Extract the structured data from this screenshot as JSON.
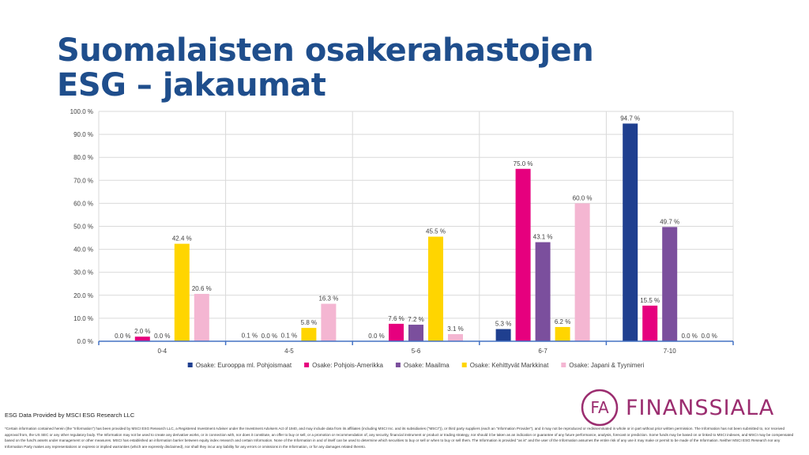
{
  "slide": {
    "title": "Suomalaisten osakerahastojen ESG – jakaumat",
    "source": "ESG Data Provided by MSCI ESG Research LLC",
    "disclaimer": "*Certain information contained herein (the \"Information\") has been provided by MSCI ESG Research LLC, a Registered Investment Adviser under the Investment Advisers Act of 1940, and may include data from its affiliates (including MSCI Inc. and its subsidiaries (\"MSCI\")), or third party suppliers (each an \"Information Provider\"), and it may not be reproduced or redisseminated in whole or in part without prior written permission. The Information has not been submitted to, nor received approval from, the US SEC or any other regulatory body. The Information may not be used to create any derivative works, or in connection with, nor does it constitute, an offer to buy or sell, or a promotion or recommendation of, any security, financial instrument or product or trading strategy, nor should it be taken as an indication or guarantee of any future performance, analysis, forecast or prediction. Some funds may be based on or linked to MSCI indexes, and MSCI may be compensated based on the fund's assets under management or other measures. MSCI has established an information barrier between equity index research and certain Information. None of the Information in and of itself can be used to determine which securities to buy or sell or when to buy or sell them. The Information is provided \"as is\" and the user of the Information assumes the entire risk of any use it may make or permit to be made of the Information. Neither MSCI ESG Research nor any Information Party makes any representations or express or implied warranties (which are expressly disclaimed), nor shall they incur any liability for any errors or omissions in the Information, or for any damages related thereto.",
    "logo_text": "FINANSSIALA",
    "logo_monogram": "FA"
  },
  "colors": {
    "title": "#1f4e8c",
    "brand": "#9b2d6f",
    "grid": "#d9d9d9",
    "axis": "#4472c4"
  },
  "chart_data": {
    "type": "bar",
    "title": "",
    "xlabel": "",
    "ylabel": "",
    "ylim": [
      0,
      100
    ],
    "ytick_step": 10,
    "ytick_labels": [
      "0.0 %",
      "10.0 %",
      "20.0 %",
      "30.0 %",
      "40.0 %",
      "50.0 %",
      "60.0 %",
      "70.0 %",
      "80.0 %",
      "90.0 %",
      "100.0 %"
    ],
    "grid": true,
    "legend_position": "bottom",
    "categories": [
      "0-4",
      "4-5",
      "5-6",
      "6-7",
      "7-10"
    ],
    "series": [
      {
        "name": "Osake: Eurooppa ml. Pohjoismaat",
        "color": "#1f3f8f",
        "values": [
          0.0,
          0.1,
          0.0,
          5.3,
          94.7
        ],
        "labels": [
          "0.0 %",
          "0.1 %",
          "0.0 %",
          "5.3 %",
          "94.7 %"
        ]
      },
      {
        "name": "Osake: Pohjois-Amerikka",
        "color": "#e6007e",
        "values": [
          2.0,
          0.0,
          7.6,
          75.0,
          15.5
        ],
        "labels": [
          "2.0 %",
          "0.0 %",
          "7.6 %",
          "75.0 %",
          "15.5 %"
        ]
      },
      {
        "name": "Osake: Maailma",
        "color": "#7b4f9d",
        "values": [
          0.0,
          0.1,
          7.2,
          43.1,
          49.7
        ],
        "labels": [
          "0.0 %",
          "0.1 %",
          "7.2 %",
          "43.1 %",
          "49.7 %"
        ]
      },
      {
        "name": "Osake: Kehittyvät Markkinat",
        "color": "#ffd500",
        "values": [
          42.4,
          5.8,
          45.5,
          6.2,
          0.0
        ],
        "labels": [
          "42.4 %",
          "5.8 %",
          "45.5 %",
          "6.2 %",
          "0.0 %"
        ]
      },
      {
        "name": "Osake: Japani & Tyynimeri",
        "color": "#f4b6d2",
        "values": [
          20.6,
          16.3,
          3.1,
          60.0,
          0.0
        ],
        "labels": [
          "20.6 %",
          "16.3 %",
          "3.1 %",
          "60.0 %",
          "0.0 %"
        ]
      }
    ]
  }
}
